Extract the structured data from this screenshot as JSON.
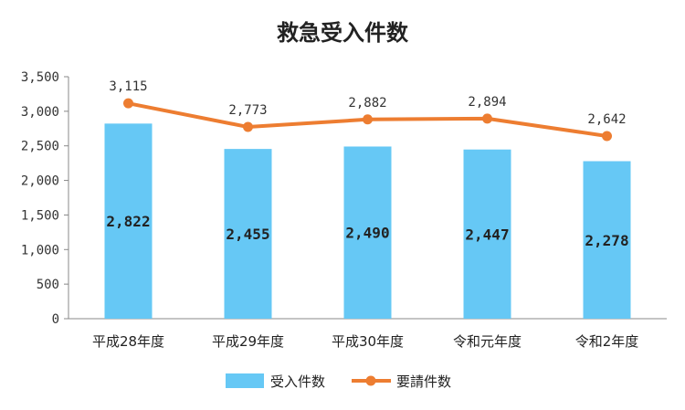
{
  "chart_data": {
    "type": "bar",
    "title": "救急受入件数",
    "categories": [
      "平成28年度",
      "平成29年度",
      "平成30年度",
      "令和元年度",
      "令和2年度"
    ],
    "series": [
      {
        "name": "受入件数",
        "type": "bar",
        "color": "#66c8f5",
        "values": [
          2822,
          2455,
          2490,
          2447,
          2278
        ]
      },
      {
        "name": "要請件数",
        "type": "line",
        "color": "#ed7d31",
        "values": [
          3115,
          2773,
          2882,
          2894,
          2642
        ]
      }
    ],
    "ylim": [
      0,
      3500
    ],
    "yticks": [
      0,
      500,
      1000,
      1500,
      2000,
      2500,
      3000,
      3500
    ],
    "ytick_labels": [
      "0",
      "500",
      "1,000",
      "1,500",
      "2,000",
      "2,500",
      "3,000",
      "3,500"
    ],
    "bar_labels": [
      "2,822",
      "2,455",
      "2,490",
      "2,447",
      "2,278"
    ],
    "line_labels": [
      "3,115",
      "2,773",
      "2,882",
      "2,894",
      "2,642"
    ],
    "grid": false,
    "legend": "bottom"
  }
}
